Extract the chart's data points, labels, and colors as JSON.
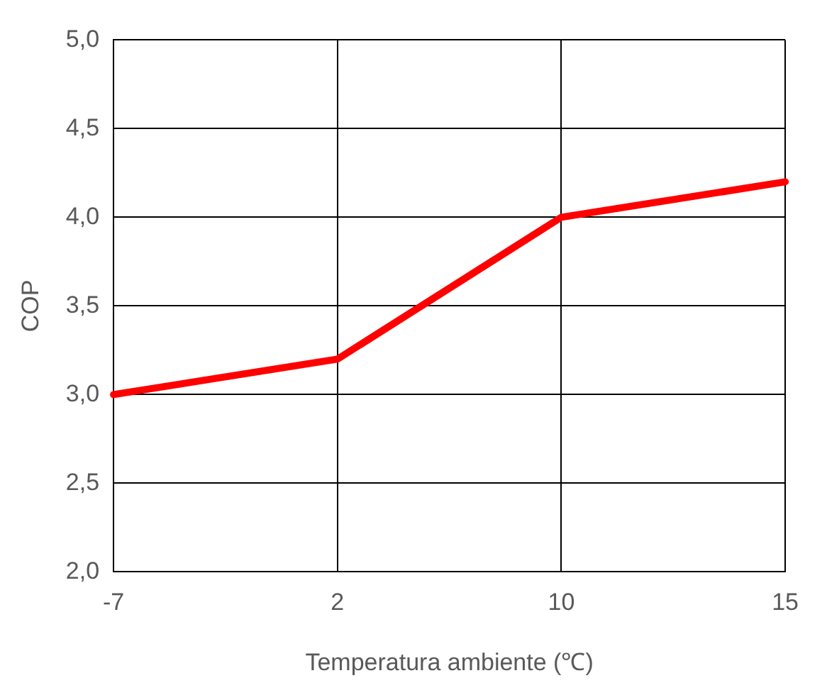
{
  "chart_data": {
    "type": "line",
    "xlabel": "Temperatura ambiente (℃)",
    "ylabel": "COP",
    "categories": [
      "-7",
      "2",
      "10",
      "15"
    ],
    "series": [
      {
        "color": "#ff0000",
        "values": [
          3.0,
          3.2,
          4.0,
          4.2
        ]
      }
    ],
    "ylim": [
      2,
      5
    ],
    "yticks": [
      {
        "value": 2,
        "label": "2,0"
      },
      {
        "value": 2.5,
        "label": "2,5"
      },
      {
        "value": 3,
        "label": "3,0"
      },
      {
        "value": 3.5,
        "label": "3,5"
      },
      {
        "value": 4,
        "label": "4,0"
      },
      {
        "value": 4.5,
        "label": "4,5"
      },
      {
        "value": 5,
        "label": "5,0"
      }
    ],
    "grid": true,
    "legend": false
  }
}
